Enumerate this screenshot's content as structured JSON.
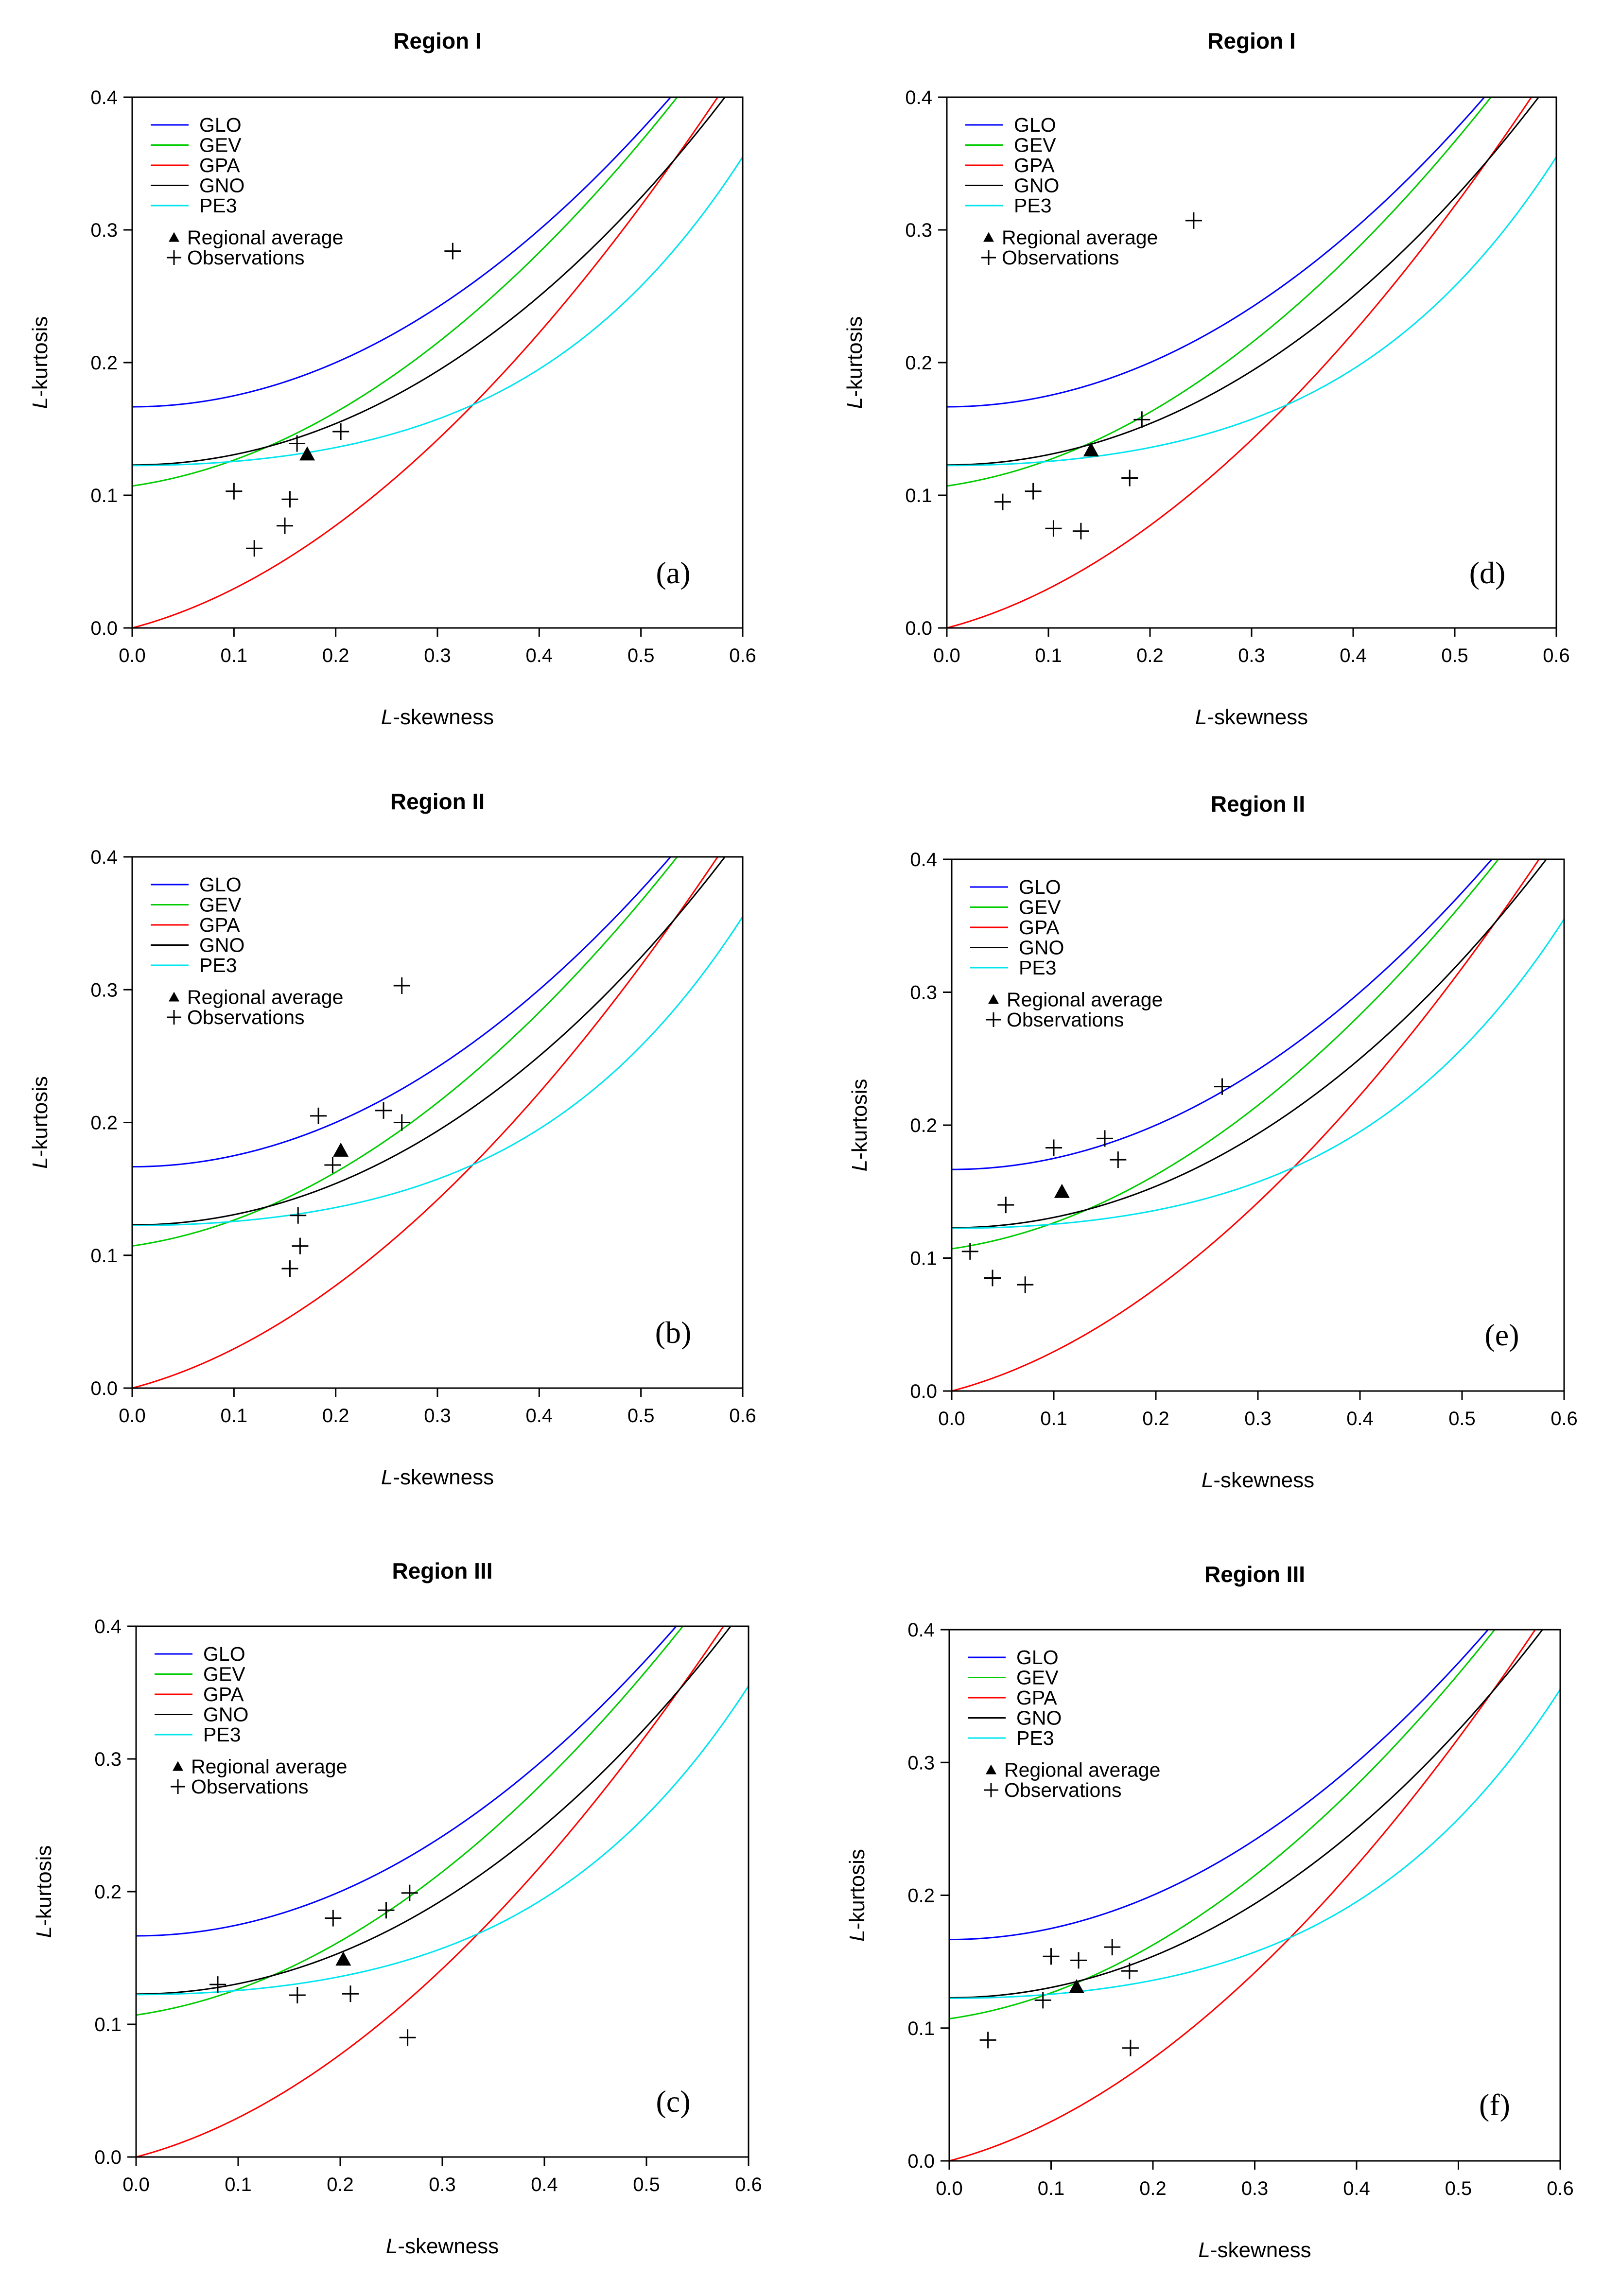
{
  "figure": {
    "xlabel_prefix": "L",
    "xlabel_suffix": "-skewness",
    "ylabel_prefix": "L",
    "ylabel_suffix": "-kurtosis",
    "xlim": [
      0,
      0.6
    ],
    "ylim": [
      0,
      0.4
    ],
    "xticks": [
      "0.0",
      "0.1",
      "0.2",
      "0.3",
      "0.4",
      "0.5",
      "0.6"
    ],
    "yticks": [
      "0.0",
      "0.1",
      "0.2",
      "0.3",
      "0.4"
    ],
    "legend": {
      "curves": [
        {
          "name": "GLO",
          "color": "#0000ff"
        },
        {
          "name": "GEV",
          "color": "#00cc00"
        },
        {
          "name": "GPA",
          "color": "#ff0000"
        },
        {
          "name": "GNO",
          "color": "#000000"
        },
        {
          "name": "PE3",
          "color": "#00e5ee"
        }
      ],
      "regional_label": "Regional average",
      "observations_label": "Observations"
    }
  },
  "chart_data": [
    {
      "type": "scatter",
      "title": "Region I",
      "tag": "(a)",
      "regional_average": [
        0.172,
        0.131
      ],
      "observations": [
        [
          0.1,
          0.103
        ],
        [
          0.12,
          0.06
        ],
        [
          0.15,
          0.077
        ],
        [
          0.155,
          0.097
        ],
        [
          0.162,
          0.139
        ],
        [
          0.205,
          0.148
        ],
        [
          0.315,
          0.284
        ]
      ]
    },
    {
      "type": "scatter",
      "title": "Region I",
      "tag": "(d)",
      "regional_average": [
        0.142,
        0.134
      ],
      "observations": [
        [
          0.055,
          0.095
        ],
        [
          0.085,
          0.103
        ],
        [
          0.105,
          0.075
        ],
        [
          0.132,
          0.073
        ],
        [
          0.18,
          0.113
        ],
        [
          0.192,
          0.157
        ],
        [
          0.243,
          0.307
        ]
      ]
    },
    {
      "type": "scatter",
      "title": "Region II",
      "tag": "(b)",
      "regional_average": [
        0.205,
        0.179
      ],
      "observations": [
        [
          0.155,
          0.09
        ],
        [
          0.163,
          0.13
        ],
        [
          0.165,
          0.107
        ],
        [
          0.183,
          0.205
        ],
        [
          0.197,
          0.168
        ],
        [
          0.247,
          0.209
        ],
        [
          0.265,
          0.2
        ],
        [
          0.265,
          0.303
        ]
      ]
    },
    {
      "type": "scatter",
      "title": "Region II",
      "tag": "(e)",
      "regional_average": [
        0.108,
        0.15
      ],
      "observations": [
        [
          0.018,
          0.105
        ],
        [
          0.04,
          0.085
        ],
        [
          0.053,
          0.14
        ],
        [
          0.072,
          0.08
        ],
        [
          0.1,
          0.183
        ],
        [
          0.15,
          0.19
        ],
        [
          0.163,
          0.174
        ],
        [
          0.265,
          0.229
        ]
      ]
    },
    {
      "type": "scatter",
      "title": "Region III",
      "tag": "(c)",
      "regional_average": [
        0.203,
        0.149
      ],
      "observations": [
        [
          0.08,
          0.13
        ],
        [
          0.158,
          0.122
        ],
        [
          0.193,
          0.18
        ],
        [
          0.21,
          0.123
        ],
        [
          0.245,
          0.186
        ],
        [
          0.266,
          0.09
        ],
        [
          0.268,
          0.199
        ]
      ]
    },
    {
      "type": "scatter",
      "title": "Region III",
      "tag": "(f)",
      "regional_average": [
        0.125,
        0.131
      ],
      "observations": [
        [
          0.038,
          0.091
        ],
        [
          0.092,
          0.121
        ],
        [
          0.1,
          0.154
        ],
        [
          0.127,
          0.151
        ],
        [
          0.16,
          0.161
        ],
        [
          0.177,
          0.143
        ],
        [
          0.178,
          0.085
        ]
      ]
    }
  ]
}
